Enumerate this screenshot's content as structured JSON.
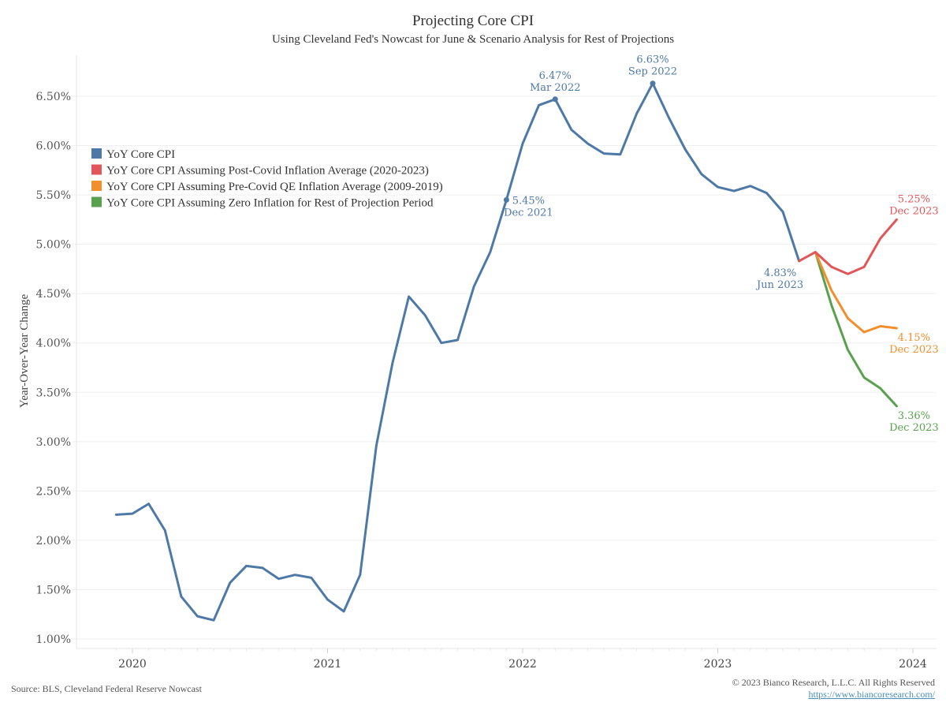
{
  "chart_data": {
    "type": "line",
    "title": "Projecting Core CPI",
    "subtitle": "Using Cleveland Fed's Nowcast for June & Scenario Analysis for Rest of Projections",
    "xlabel": "",
    "ylabel": "Year-Over-Year Change",
    "ylim": [
      0.95,
      6.85
    ],
    "yticks": [
      1.0,
      1.5,
      2.0,
      2.5,
      3.0,
      3.5,
      4.0,
      4.5,
      5.0,
      5.5,
      6.0,
      6.5
    ],
    "ytick_labels": [
      "1.00%",
      "1.50%",
      "2.00%",
      "2.50%",
      "3.00%",
      "3.50%",
      "4.00%",
      "4.50%",
      "5.00%",
      "5.50%",
      "6.00%",
      "6.50%"
    ],
    "xticks": [
      "2020",
      "2021",
      "2022",
      "2023",
      "2024"
    ],
    "grid": true,
    "legend_position": "top-left",
    "series": [
      {
        "name": "YoY Core CPI",
        "color": "#4E79A7",
        "x": [
          "2019-12",
          "2020-01",
          "2020-02",
          "2020-03",
          "2020-04",
          "2020-05",
          "2020-06",
          "2020-07",
          "2020-08",
          "2020-09",
          "2020-10",
          "2020-11",
          "2020-12",
          "2021-01",
          "2021-02",
          "2021-03",
          "2021-04",
          "2021-05",
          "2021-06",
          "2021-07",
          "2021-08",
          "2021-09",
          "2021-10",
          "2021-11",
          "2021-12",
          "2022-01",
          "2022-02",
          "2022-03",
          "2022-04",
          "2022-05",
          "2022-06",
          "2022-07",
          "2022-08",
          "2022-09",
          "2022-10",
          "2022-11",
          "2022-12",
          "2023-01",
          "2023-02",
          "2023-03",
          "2023-04",
          "2023-05",
          "2023-06"
        ],
        "values": [
          2.26,
          2.27,
          2.37,
          2.1,
          1.43,
          1.23,
          1.19,
          1.57,
          1.74,
          1.72,
          1.61,
          1.65,
          1.62,
          1.4,
          1.28,
          1.65,
          2.96,
          3.8,
          4.47,
          4.28,
          4.0,
          4.03,
          4.57,
          4.92,
          5.45,
          6.02,
          6.41,
          6.47,
          6.16,
          6.02,
          5.92,
          5.91,
          6.32,
          6.63,
          6.28,
          5.96,
          5.71,
          5.58,
          5.54,
          5.59,
          5.52,
          5.33,
          4.83
        ]
      },
      {
        "name": "YoY Core CPI Assuming Post-Covid Inflation Average (2020-2023)",
        "color": "#E15759",
        "x": [
          "2023-06",
          "2023-07",
          "2023-08",
          "2023-09",
          "2023-10",
          "2023-11",
          "2023-12"
        ],
        "values": [
          4.83,
          4.92,
          4.77,
          4.7,
          4.77,
          5.06,
          5.25
        ]
      },
      {
        "name": "YoY Core CPI Assuming Pre-Covid QE Inflation Average (2009-2019)",
        "color": "#F28E2B",
        "x": [
          "2023-07",
          "2023-08",
          "2023-09",
          "2023-10",
          "2023-11",
          "2023-12"
        ],
        "values": [
          4.92,
          4.53,
          4.25,
          4.11,
          4.17,
          4.15
        ]
      },
      {
        "name": "YoY Core CPI Assuming Zero Inflation for Rest of Projection Period",
        "color": "#59A14F",
        "x": [
          "2023-07",
          "2023-08",
          "2023-09",
          "2023-10",
          "2023-11",
          "2023-12"
        ],
        "values": [
          4.92,
          4.38,
          3.93,
          3.65,
          3.54,
          3.36
        ]
      }
    ],
    "annotations": [
      {
        "series": 0,
        "x": "2021-12",
        "value": "5.45%",
        "date": "Dec 2021",
        "color": "#4E79A7",
        "marker": true,
        "placement": "below-right"
      },
      {
        "series": 0,
        "x": "2022-03",
        "value": "6.47%",
        "date": "Mar 2022",
        "color": "#4E79A7",
        "marker": true,
        "placement": "above"
      },
      {
        "series": 0,
        "x": "2022-09",
        "value": "6.63%",
        "date": "Sep 2022",
        "color": "#4E79A7",
        "marker": true,
        "placement": "above"
      },
      {
        "series": 0,
        "x": "2023-06",
        "value": "4.83%",
        "date": "Jun 2023",
        "color": "#4E79A7",
        "marker": false,
        "placement": "below-left"
      },
      {
        "series": 1,
        "x": "2023-12",
        "value": "5.25%",
        "date": "Dec 2023",
        "color": "#E15759",
        "marker": false,
        "placement": "above"
      },
      {
        "series": 2,
        "x": "2023-12",
        "value": "4.15%",
        "date": "Dec 2023",
        "color": "#F28E2B",
        "marker": false,
        "placement": "below"
      },
      {
        "series": 3,
        "x": "2023-12",
        "value": "3.36%",
        "date": "Dec 2023",
        "color": "#59A14F",
        "marker": false,
        "placement": "below"
      }
    ]
  },
  "footer": {
    "source": "Source: BLS, Cleveland Federal Reserve Nowcast",
    "copyright": "© 2023 Bianco Research, L.L.C. All Rights Reserved",
    "link": "https://www.biancoresearch.com/"
  }
}
